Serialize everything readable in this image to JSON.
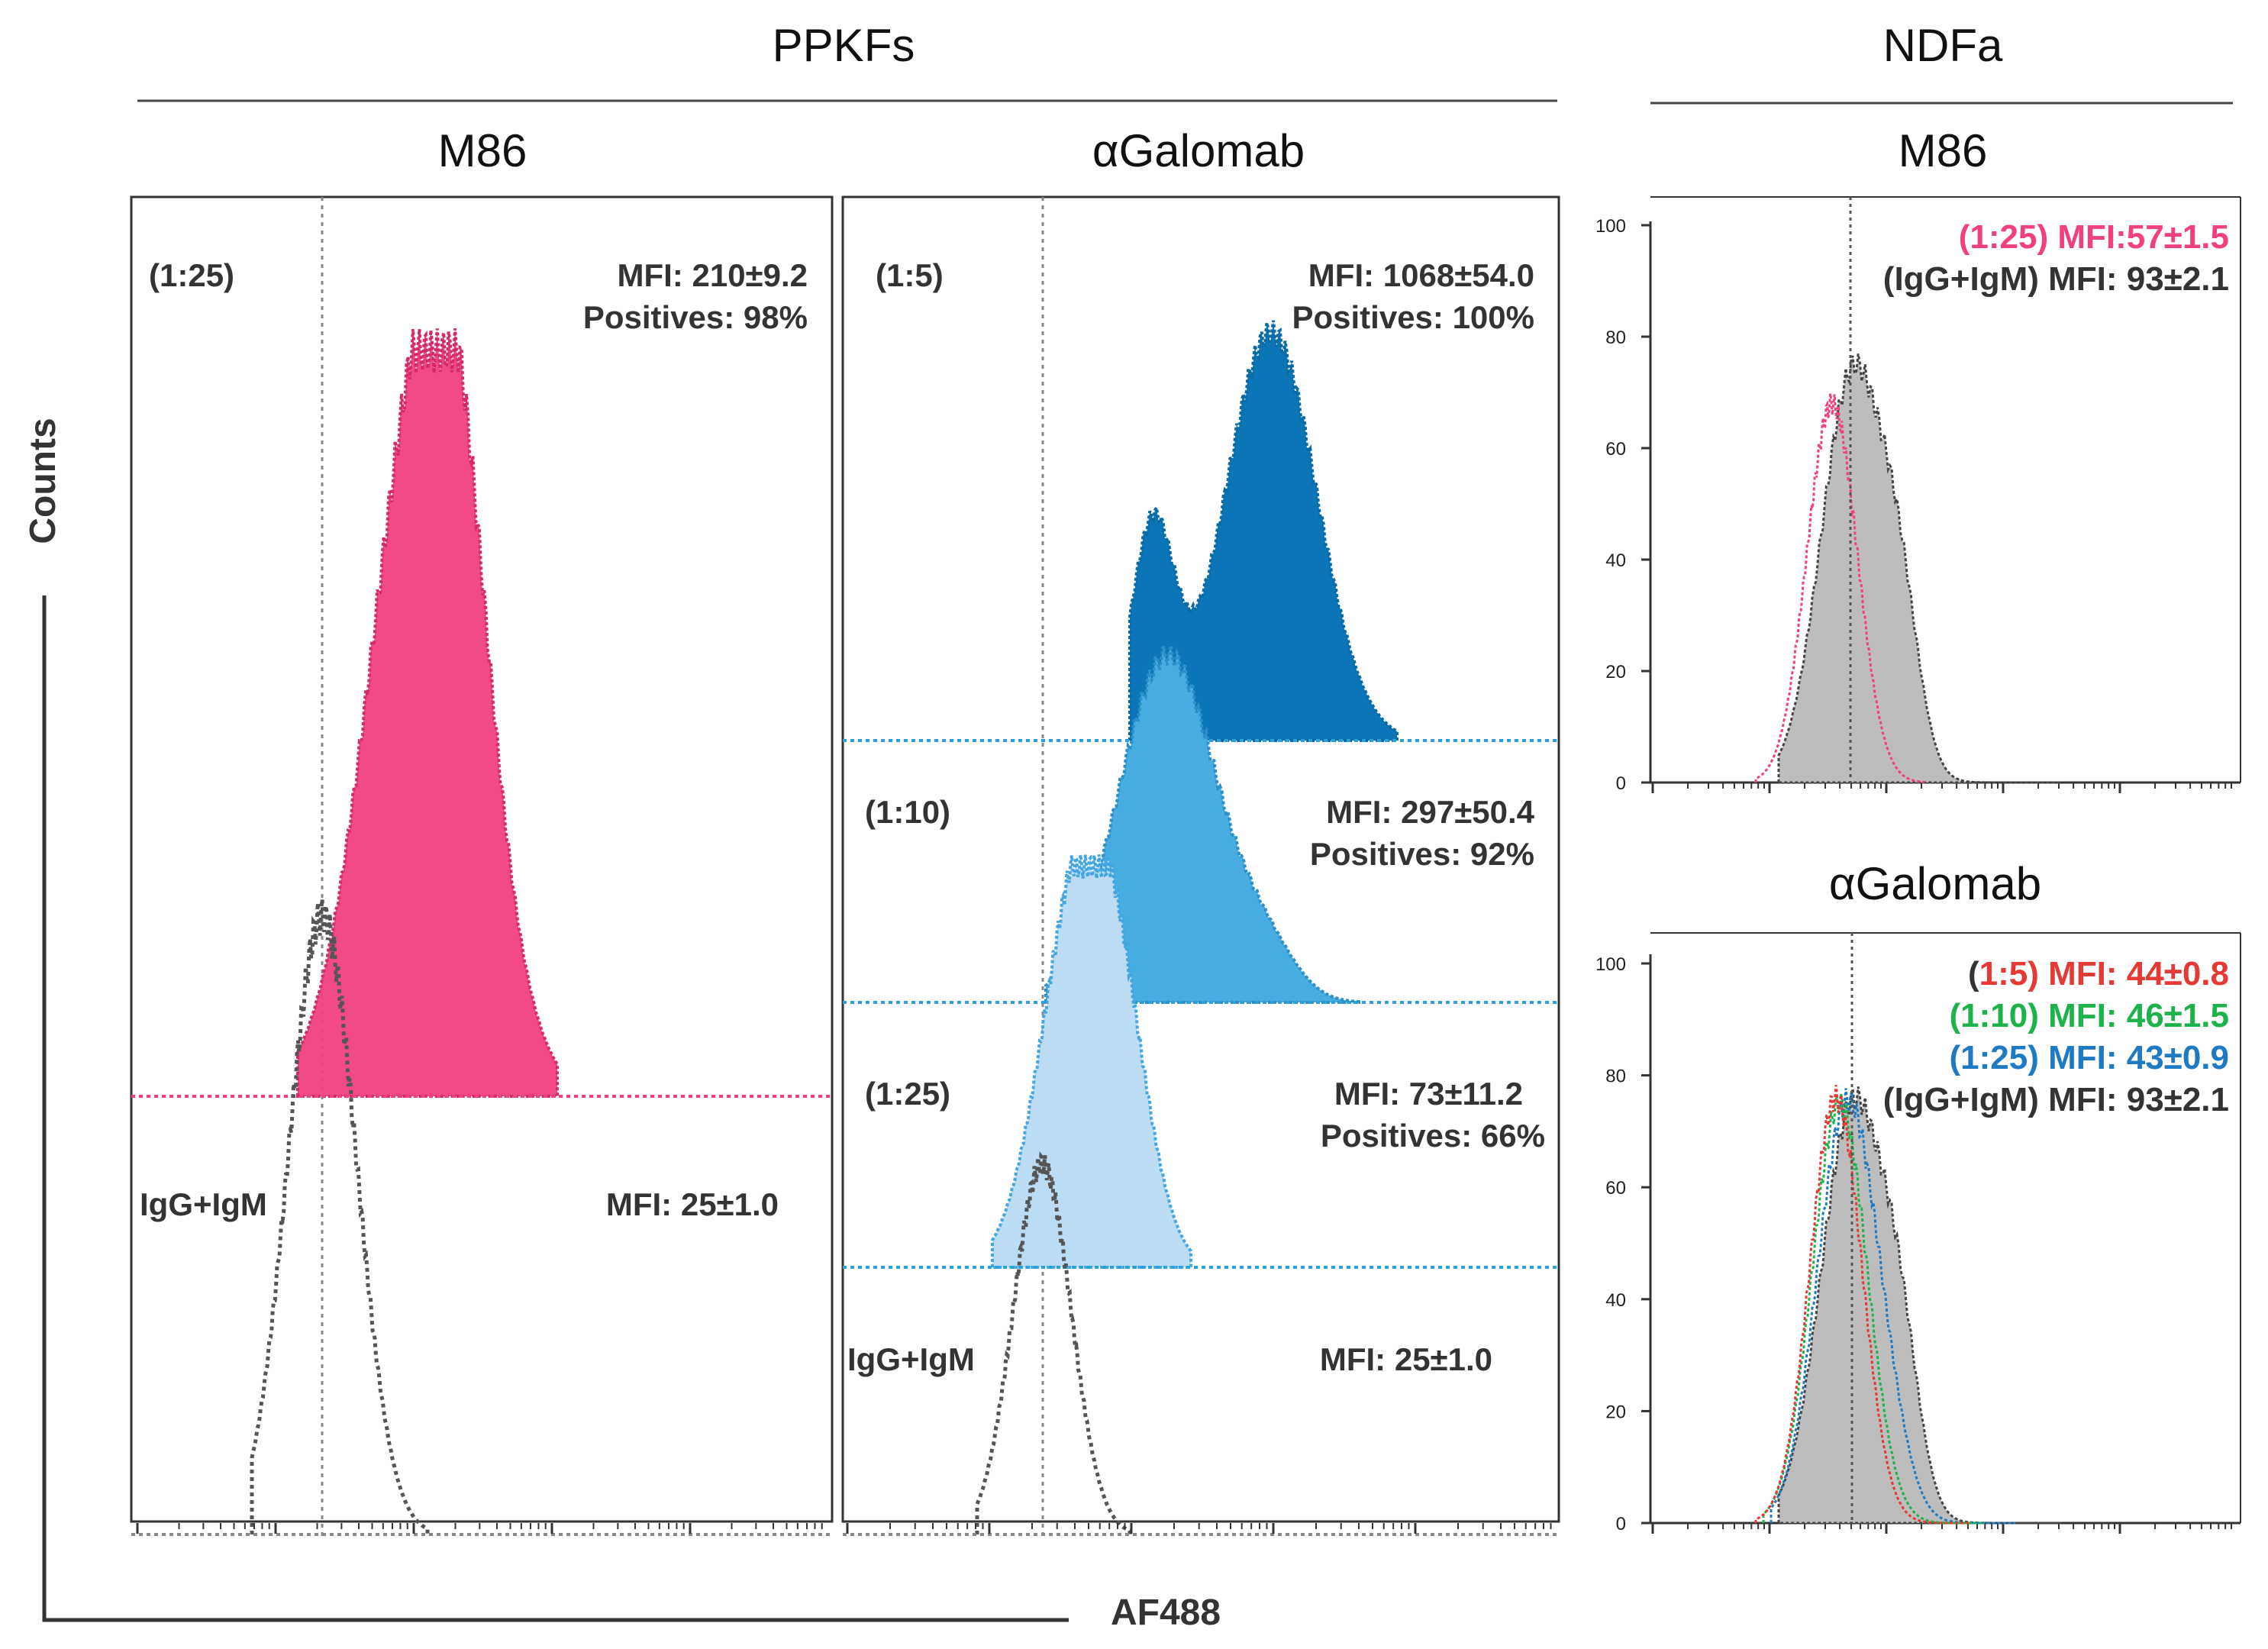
{
  "figure": {
    "group_left": "PPKFs",
    "group_right": "NDFa",
    "axis_y_label": "Counts",
    "axis_x_label": "AF488"
  },
  "chart_data": [
    {
      "type": "histogram",
      "id": "ppkf_m86",
      "title": "M86",
      "x_scale": "log",
      "series": [
        {
          "name": "(1:25)",
          "color": "#f0407f",
          "peak_log": 0.3,
          "width_log": 0.17,
          "peak_count": 70,
          "fill": true
        },
        {
          "name": "IgG+IgM",
          "color": "#555555",
          "peak_log": -0.15,
          "width_log": 0.12,
          "peak_count": 70,
          "fill": false
        }
      ],
      "annotations": [
        {
          "label": "(1:25)",
          "mfi": "MFI: 210±9.2",
          "positives": "Positives: 98%"
        },
        {
          "label": "IgG+IgM",
          "mfi": "MFI: 25±1.0"
        }
      ]
    },
    {
      "type": "histogram",
      "id": "ppkf_galomab",
      "title": "αGalomab",
      "x_scale": "log",
      "series": [
        {
          "name": "(1:5)",
          "color": "#0b76b7",
          "peak_log": 0.55,
          "width_log": 0.2,
          "peak_count": 100,
          "fill": true
        },
        {
          "name": "(1:10)",
          "color": "#48ade0",
          "peak_log": 0.3,
          "width_log": 0.2,
          "peak_count": 100,
          "fill": true
        },
        {
          "name": "(1:25)",
          "color": "#bcdcf3",
          "peak_log": 0.08,
          "width_log": 0.16,
          "peak_count": 100,
          "fill": true
        },
        {
          "name": "IgG+IgM",
          "color": "#555555",
          "peak_log": -0.15,
          "width_log": 0.12,
          "peak_count": 100,
          "fill": false
        }
      ],
      "annotations": [
        {
          "label": "(1:5)",
          "mfi": "MFI: 1068±54.0",
          "positives": "Positives: 100%"
        },
        {
          "label": "(1:10)",
          "mfi": "MFI: 297±50.4",
          "positives": "Positives: 92%"
        },
        {
          "label": "(1:25)",
          "mfi": "MFI: 73±11.2",
          "positives": "Positives: 66%"
        },
        {
          "label": "IgG+IgM",
          "mfi": "MFI: 25±1.0"
        }
      ]
    },
    {
      "type": "histogram",
      "id": "ndfa_m86",
      "title": "M86",
      "ylim": [
        0,
        100
      ],
      "yticks": [
        0,
        20,
        40,
        60,
        80,
        100
      ],
      "series": [
        {
          "name": "(1:25)",
          "color": "#f0407f",
          "peak": 68,
          "peak_pos": 0.36,
          "width": 0.05,
          "fill": false
        },
        {
          "name": "IgG+IgM",
          "color": "#444444",
          "peak": 74,
          "peak_pos": 0.39,
          "width": 0.07,
          "fill": true
        }
      ],
      "legend": [
        {
          "text": "(1:25) MFI:57±1.5",
          "color": "#f0407f"
        },
        {
          "text": "(IgG+IgM) MFI: 93±2.1",
          "color": "#333333"
        }
      ]
    },
    {
      "type": "histogram",
      "id": "ndfa_galomab",
      "title": "αGalomab",
      "ylim": [
        0,
        100
      ],
      "yticks": [
        0,
        20,
        40,
        60,
        80,
        100
      ],
      "series": [
        {
          "name": "(1:5)",
          "color": "#e53935",
          "peak": 76,
          "peak_pos": 0.37,
          "width": 0.05,
          "fill": false
        },
        {
          "name": "(1:10)",
          "color": "#1db34a",
          "peak": 75,
          "peak_pos": 0.375,
          "width": 0.055,
          "fill": false
        },
        {
          "name": "(1:25)",
          "color": "#1f7ac4",
          "peak": 73,
          "peak_pos": 0.38,
          "width": 0.06,
          "fill": false
        },
        {
          "name": "IgG+IgM",
          "color": "#444444",
          "peak": 75,
          "peak_pos": 0.39,
          "width": 0.07,
          "fill": true
        }
      ],
      "legend": [
        {
          "prefix": "(",
          "rest": "1:5) MFI: 44±0.8",
          "color": "#e53935"
        },
        {
          "prefix": "",
          "rest": "(1:10) MFI: 46±1.5",
          "color": "#1db34a"
        },
        {
          "prefix": "",
          "rest": "(1:25) MFI: 43±0.9",
          "color": "#1f7ac4"
        },
        {
          "prefix": "",
          "rest": "(IgG+IgM) MFI: 93±2.1",
          "color": "#333333"
        }
      ]
    }
  ]
}
